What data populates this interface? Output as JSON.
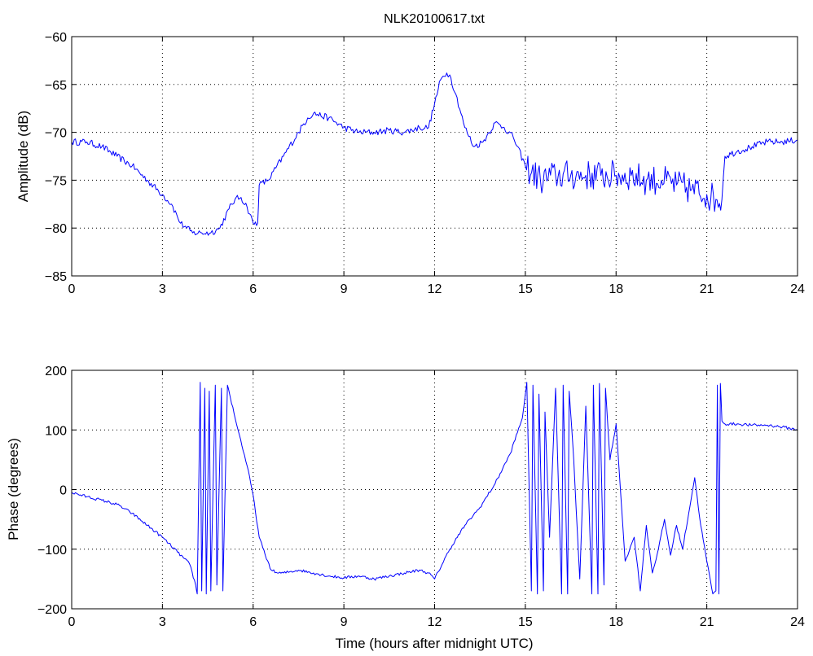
{
  "chart_data": [
    {
      "type": "line",
      "title": "NLK20100617.txt",
      "xlabel": "",
      "ylabel": "Amplitude (dB)",
      "xlim": [
        0,
        24
      ],
      "ylim": [
        -85,
        -60
      ],
      "xticks": [
        0,
        3,
        6,
        9,
        12,
        15,
        18,
        21,
        24
      ],
      "xtick_labels": [
        "0",
        "3",
        "6",
        "9",
        "12",
        "15",
        "18",
        "21",
        "24"
      ],
      "yticks": [
        -85,
        -80,
        -75,
        -70,
        -65,
        -60
      ],
      "ytick_labels": [
        "−85",
        "−80",
        "−75",
        "−70",
        "−65",
        "−60"
      ],
      "grid": true,
      "color": "#0000ff",
      "series": [
        {
          "x": [
            0,
            0.5,
            1.0,
            1.5,
            2.0,
            2.5,
            3.0,
            3.3,
            3.6,
            3.8,
            4.0,
            4.3,
            4.6,
            4.9,
            5.2,
            5.4,
            5.6,
            5.8,
            6.0,
            6.15,
            6.2,
            6.5,
            7.0,
            7.5,
            7.8,
            8.0,
            8.5,
            9.0,
            9.5,
            10.0,
            10.5,
            11.0,
            11.5,
            11.8,
            12.0,
            12.2,
            12.4,
            12.5,
            12.7,
            13.0,
            13.3,
            13.6,
            13.8,
            14.0,
            14.3,
            14.6,
            15.0,
            15.5,
            16.0,
            16.5,
            17.0,
            17.5,
            18.0,
            18.5,
            19.0,
            19.5,
            20.0,
            20.5,
            21.0,
            21.3,
            21.5,
            21.6,
            22.0,
            22.5,
            23.0,
            23.5,
            24.0
          ],
          "y": [
            -71,
            -71,
            -71.5,
            -72.5,
            -73.5,
            -75,
            -76.5,
            -77.5,
            -79.5,
            -80,
            -80.5,
            -80.5,
            -80.5,
            -80,
            -78,
            -77,
            -76.8,
            -77.8,
            -79.5,
            -79.5,
            -75.5,
            -75,
            -72.5,
            -70,
            -68.5,
            -68,
            -68.5,
            -69.5,
            -70,
            -70,
            -69.8,
            -70,
            -69.5,
            -69.5,
            -67,
            -64.5,
            -63.8,
            -64,
            -66,
            -69.5,
            -71.5,
            -71,
            -70,
            -69,
            -69.5,
            -70.5,
            -73.5,
            -75,
            -74.5,
            -74.5,
            -74.5,
            -74.5,
            -74.5,
            -74.5,
            -75,
            -75,
            -75.5,
            -76,
            -76.5,
            -77,
            -77,
            -72.5,
            -72,
            -71.5,
            -71,
            -71,
            -70.8
          ]
        }
      ]
    },
    {
      "type": "line",
      "title": "",
      "xlabel": "Time (hours after midnight UTC)",
      "ylabel": "Phase (degrees)",
      "xlim": [
        0,
        24
      ],
      "ylim": [
        -200,
        200
      ],
      "xticks": [
        0,
        3,
        6,
        9,
        12,
        15,
        18,
        21,
        24
      ],
      "xtick_labels": [
        "0",
        "3",
        "6",
        "9",
        "12",
        "15",
        "18",
        "21",
        "24"
      ],
      "yticks": [
        -200,
        -100,
        0,
        100,
        200
      ],
      "ytick_labels": [
        "−200",
        "−100",
        "0",
        "100",
        "200"
      ],
      "grid": true,
      "color": "#0000ff",
      "series": [
        {
          "x": [
            0,
            0.5,
            1.0,
            1.5,
            2.0,
            2.5,
            3.0,
            3.5,
            3.9,
            4.1,
            4.15,
            4.25,
            4.3,
            4.4,
            4.45,
            4.55,
            4.6,
            4.75,
            4.8,
            4.95,
            5.0,
            5.15,
            5.2,
            5.5,
            5.8,
            6.0,
            6.2,
            6.4,
            6.6,
            6.8,
            7.0,
            7.5,
            8.0,
            8.5,
            9.0,
            9.5,
            10.0,
            10.5,
            11.0,
            11.5,
            11.8,
            12.0,
            12.5,
            13.0,
            13.5,
            14.0,
            14.5,
            14.9,
            15.0,
            15.05,
            15.2,
            15.25,
            15.4,
            15.45,
            15.6,
            15.65,
            15.8,
            16.0,
            16.2,
            16.25,
            16.4,
            16.45,
            16.6,
            16.8,
            17.0,
            17.2,
            17.25,
            17.4,
            17.45,
            17.6,
            17.65,
            17.8,
            18.0,
            18.3,
            18.6,
            18.8,
            19.0,
            19.2,
            19.4,
            19.6,
            19.8,
            20.0,
            20.2,
            20.4,
            20.6,
            20.8,
            21.0,
            21.2,
            21.3,
            21.35,
            21.4,
            21.45,
            21.5,
            21.6,
            22.0,
            22.5,
            23.0,
            23.5,
            24.0
          ],
          "y": [
            -5,
            -12,
            -18,
            -25,
            -40,
            -60,
            -80,
            -105,
            -125,
            -160,
            -175,
            180,
            -170,
            170,
            -175,
            165,
            -170,
            175,
            -160,
            170,
            -170,
            175,
            165,
            100,
            40,
            -10,
            -80,
            -110,
            -135,
            -140,
            -140,
            -135,
            -140,
            -145,
            -148,
            -145,
            -150,
            -145,
            -140,
            -135,
            -140,
            -150,
            -100,
            -60,
            -30,
            10,
            60,
            120,
            160,
            180,
            -170,
            175,
            -175,
            160,
            -170,
            130,
            -80,
            170,
            -175,
            175,
            -175,
            165,
            50,
            -150,
            140,
            -175,
            175,
            -175,
            178,
            -160,
            170,
            50,
            110,
            -120,
            -80,
            -170,
            -60,
            -140,
            -100,
            -50,
            -110,
            -60,
            -100,
            -40,
            20,
            -60,
            -120,
            -175,
            -170,
            175,
            -175,
            178,
            115,
            110,
            110,
            108,
            108,
            105,
            100
          ]
        }
      ]
    }
  ]
}
